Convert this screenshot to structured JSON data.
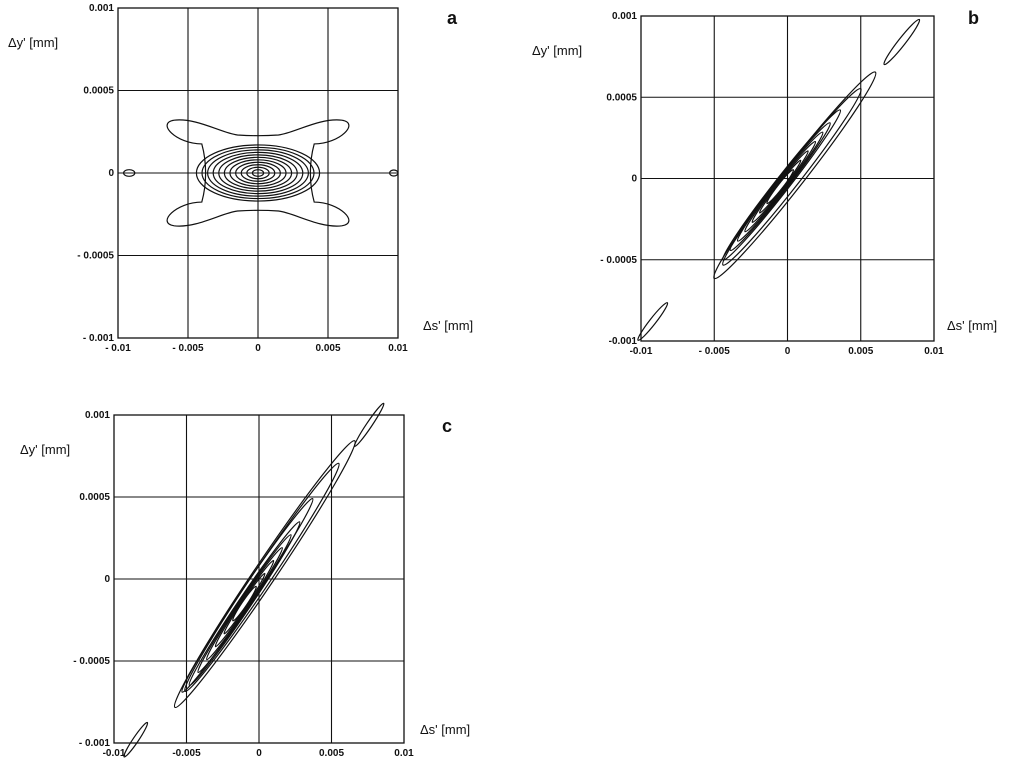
{
  "colors": {
    "ink": "#111111",
    "background": "#ffffff"
  },
  "chart_data": [
    {
      "type": "contour",
      "panel_label": "a",
      "xlabel": "Δs' [mm]",
      "ylabel": "Δy' [mm]",
      "xlim": [
        -0.01,
        0.01
      ],
      "ylim": [
        -0.001,
        0.001
      ],
      "x_ticks": [
        -0.01,
        -0.005,
        0,
        0.005,
        0.01
      ],
      "x_tick_labels": [
        "- 0.01",
        "- 0.005",
        "0",
        "0.005",
        "0.01"
      ],
      "y_ticks": [
        -0.001,
        -0.0005,
        0,
        0.0005,
        0.001
      ],
      "y_tick_labels": [
        "- 0.001",
        "- 0.0005",
        "0",
        "0.0005",
        "0.001"
      ],
      "grid": true,
      "peak": [
        0,
        0
      ],
      "tilt_deg": 0,
      "contours": [
        {
          "shape": "cross",
          "cx": 0,
          "cy": 0,
          "rx": 0.0073,
          "ry": 0.00032
        },
        {
          "shape": "ellipse",
          "cx": 0,
          "cy": 0,
          "rx": 0.0044,
          "ry": 0.00017
        },
        {
          "shape": "ellipse",
          "cx": 0,
          "cy": 0,
          "rx": 0.004,
          "ry": 0.000155
        },
        {
          "shape": "ellipse",
          "cx": 0,
          "cy": 0,
          "rx": 0.0036,
          "ry": 0.00014
        },
        {
          "shape": "ellipse",
          "cx": 0,
          "cy": 0,
          "rx": 0.0032,
          "ry": 0.000125
        },
        {
          "shape": "ellipse",
          "cx": 0,
          "cy": 0,
          "rx": 0.0028,
          "ry": 0.00011
        },
        {
          "shape": "ellipse",
          "cx": 0,
          "cy": 0,
          "rx": 0.0024,
          "ry": 9.5e-05
        },
        {
          "shape": "ellipse",
          "cx": 0,
          "cy": 0,
          "rx": 0.002,
          "ry": 8e-05
        },
        {
          "shape": "ellipse",
          "cx": 0,
          "cy": 0,
          "rx": 0.0016,
          "ry": 6.5e-05
        },
        {
          "shape": "ellipse",
          "cx": 0,
          "cy": 0,
          "rx": 0.0012,
          "ry": 5e-05
        },
        {
          "shape": "ellipse",
          "cx": 0,
          "cy": 0,
          "rx": 0.0008,
          "ry": 3.5e-05
        },
        {
          "shape": "ellipse",
          "cx": 0,
          "cy": 0,
          "rx": 0.0004,
          "ry": 2e-05
        },
        {
          "shape": "ellipse",
          "cx": -0.0092,
          "cy": 0,
          "rx": 0.0004,
          "ry": 2e-05
        },
        {
          "shape": "ellipse",
          "cx": 0.0097,
          "cy": 0,
          "rx": 0.0003,
          "ry": 1.8e-05
        }
      ]
    },
    {
      "type": "contour",
      "panel_label": "b",
      "xlabel": "Δs' [mm]",
      "ylabel": "Δy' [mm]",
      "xlim": [
        -0.01,
        0.01
      ],
      "ylim": [
        -0.001,
        0.001
      ],
      "x_ticks": [
        -0.01,
        -0.005,
        0,
        0.005,
        0.01
      ],
      "x_tick_labels": [
        "-0.01",
        "- 0.005",
        "0",
        "0.005",
        "0.01"
      ],
      "y_ticks": [
        -0.001,
        -0.0005,
        0,
        0.0005,
        0.001
      ],
      "y_tick_labels": [
        "-0.001",
        "- 0.0005",
        "0",
        "0.0005",
        "0.001"
      ],
      "grid": true,
      "peak": [
        -0.0005,
        -5e-05
      ],
      "tilt_deg": 52,
      "contours": [
        {
          "shape": "ellipse",
          "cx": 0.0005,
          "cy": 2e-05,
          "rx": 0.0055,
          "ry": 0.00012
        },
        {
          "shape": "ellipse",
          "cx": 0.0003,
          "cy": 1e-05,
          "rx": 0.0047,
          "ry": 0.0001
        },
        {
          "shape": "ellipse",
          "cx": -0.0004,
          "cy": -4e-05,
          "rx": 0.004,
          "ry": 8e-05
        },
        {
          "shape": "ellipse",
          "cx": -0.0005,
          "cy": -5e-05,
          "rx": 0.0034,
          "ry": 7e-05
        },
        {
          "shape": "ellipse",
          "cx": -0.0005,
          "cy": -5e-05,
          "rx": 0.0029,
          "ry": 6e-05
        },
        {
          "shape": "ellipse",
          "cx": -0.0005,
          "cy": -5e-05,
          "rx": 0.0024,
          "ry": 5e-05
        },
        {
          "shape": "ellipse",
          "cx": -0.0005,
          "cy": -5e-05,
          "rx": 0.0019,
          "ry": 4e-05
        },
        {
          "shape": "ellipse",
          "cx": -0.0005,
          "cy": -5e-05,
          "rx": 0.0014,
          "ry": 3e-05
        },
        {
          "shape": "ellipse",
          "cx": -0.0005,
          "cy": -5e-05,
          "rx": 0.0009,
          "ry": 2e-05
        },
        {
          "shape": "ellipse",
          "cx": 0.0078,
          "cy": 0.00084,
          "rx": 0.0012,
          "ry": 4e-05
        },
        {
          "shape": "ellipse",
          "cx": -0.0092,
          "cy": -0.00088,
          "rx": 0.001,
          "ry": 3.5e-05
        }
      ]
    },
    {
      "type": "contour",
      "panel_label": "c",
      "xlabel": "Δs' [mm]",
      "ylabel": "Δy' [mm]",
      "xlim": [
        -0.01,
        0.01
      ],
      "ylim": [
        -0.001,
        0.001
      ],
      "x_ticks": [
        -0.01,
        -0.005,
        0,
        0.005,
        0.01
      ],
      "x_tick_labels": [
        "-0.01",
        "-0.005",
        "0",
        "0.005",
        "0.01"
      ],
      "y_ticks": [
        -0.001,
        -0.0005,
        0,
        0.0005,
        0.001
      ],
      "y_tick_labels": [
        "- 0.001",
        "- 0.0005",
        "0",
        "0.0005",
        "0.001"
      ],
      "grid": true,
      "peak": [
        -0.001,
        -0.00015
      ],
      "tilt_deg": 56,
      "contours": [
        {
          "shape": "ellipse",
          "cx": 0.0004,
          "cy": 3e-05,
          "rx": 0.0062,
          "ry": 0.00012
        },
        {
          "shape": "ellipse",
          "cx": 0.0002,
          "cy": 1e-05,
          "rx": 0.0053,
          "ry": 0.0001
        },
        {
          "shape": "ellipse",
          "cx": -0.0008,
          "cy": -0.0001,
          "rx": 0.0045,
          "ry": 8e-05
        },
        {
          "shape": "ellipse",
          "cx": -0.001,
          "cy": -0.00015,
          "rx": 0.0038,
          "ry": 7e-05
        },
        {
          "shape": "ellipse",
          "cx": -0.001,
          "cy": -0.00015,
          "rx": 0.0032,
          "ry": 6e-05
        },
        {
          "shape": "ellipse",
          "cx": -0.001,
          "cy": -0.00015,
          "rx": 0.0026,
          "ry": 5e-05
        },
        {
          "shape": "ellipse",
          "cx": -0.001,
          "cy": -0.00015,
          "rx": 0.002,
          "ry": 4e-05
        },
        {
          "shape": "ellipse",
          "cx": -0.001,
          "cy": -0.00015,
          "rx": 0.0014,
          "ry": 3e-05
        },
        {
          "shape": "ellipse",
          "cx": -0.001,
          "cy": -0.00015,
          "rx": 0.0008,
          "ry": 2e-05
        },
        {
          "shape": "ellipse",
          "cx": 0.0076,
          "cy": 0.00094,
          "rx": 0.001,
          "ry": 3e-05
        },
        {
          "shape": "ellipse",
          "cx": -0.0085,
          "cy": -0.00098,
          "rx": 0.0008,
          "ry": 3e-05
        }
      ]
    }
  ]
}
